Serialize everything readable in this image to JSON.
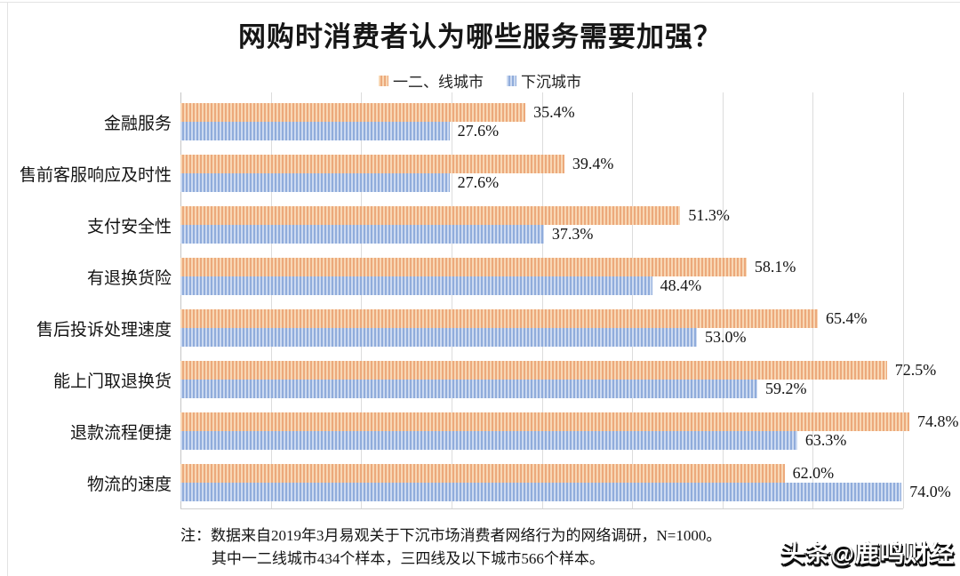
{
  "title": "网购时消费者认为哪些服务需要加强？",
  "legend": {
    "items": [
      {
        "label": "一二、线城市"
      },
      {
        "label": "下沉城市"
      }
    ]
  },
  "chart_data": {
    "type": "bar",
    "orientation": "horizontal",
    "title": "网购时消费者认为哪些服务需要加强？",
    "categories": [
      "金融服务",
      "售前客服响应及时性",
      "支付安全性",
      "有退换货险",
      "售后投诉处理速度",
      "能上门取退换货",
      "退款流程便捷",
      "物流的速度"
    ],
    "series": [
      {
        "name": "一二、线城市",
        "values": [
          35.4,
          39.4,
          51.3,
          58.1,
          65.4,
          72.5,
          74.8,
          62.0
        ],
        "labels": [
          "35.4%",
          "39.4%",
          "51.3%",
          "58.1%",
          "65.4%",
          "72.5%",
          "74.8%",
          "62.0%"
        ],
        "fill": "#F8D7B4",
        "stripe": "#ECA97B"
      },
      {
        "name": "下沉城市",
        "values": [
          27.6,
          27.6,
          37.3,
          48.4,
          53.0,
          59.2,
          63.3,
          74.0
        ],
        "labels": [
          "27.6%",
          "27.6%",
          "37.3%",
          "48.4%",
          "53.0%",
          "59.2%",
          "63.3%",
          "74.0%"
        ],
        "fill": "#CCDAF1",
        "stripe": "#90ACDB"
      }
    ],
    "xlim": [
      0,
      80
    ],
    "grid_step": 10,
    "value_suffix": "%",
    "gridlines": true,
    "legend_position": "top"
  },
  "note": {
    "prefix": "注：",
    "line1": "数据来自2019年3月易观关于下沉市场消费者网络行为的网络调研，N=1000。",
    "line2": "其中一二线城市434个样本，三四线及以下城市566个样本。"
  },
  "watermark": "头条@鹿鸣财经",
  "colors": {
    "grid": "#dcdcdc",
    "axis": "#c6c6c6",
    "series1": "#ECA97B",
    "series2": "#90ACDB"
  }
}
